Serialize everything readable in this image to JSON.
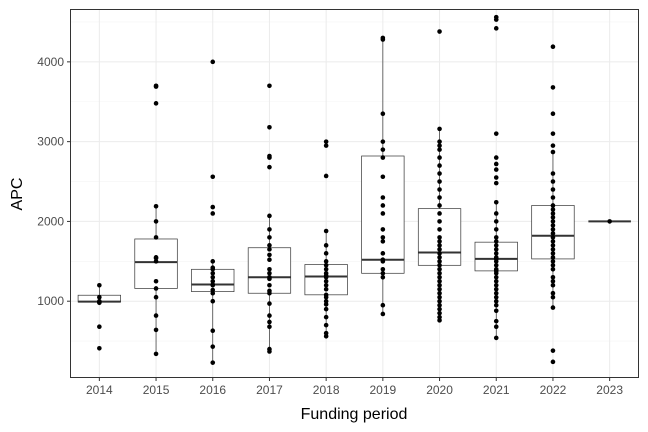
{
  "chart_data": {
    "type": "box",
    "xlabel": "Funding period",
    "ylabel": "APC",
    "ylim": [
      50,
      4650
    ],
    "yticks": [
      1000,
      2000,
      3000,
      4000
    ],
    "grid": true,
    "categories": [
      "2014",
      "2015",
      "2016",
      "2017",
      "2018",
      "2019",
      "2020",
      "2021",
      "2022",
      "2023"
    ],
    "boxes": [
      {
        "category": "2014",
        "lower": 980,
        "q1": 990,
        "median": 995,
        "q3": 1075,
        "upper": 1200
      },
      {
        "category": "2015",
        "lower": 340,
        "q1": 1160,
        "median": 1490,
        "q3": 1780,
        "upper": 2190
      },
      {
        "category": "2016",
        "lower": 230,
        "q1": 1120,
        "median": 1210,
        "q3": 1400,
        "upper": 1500
      },
      {
        "category": "2017",
        "lower": 370,
        "q1": 1100,
        "median": 1300,
        "q3": 1670,
        "upper": 2070
      },
      {
        "category": "2018",
        "lower": 560,
        "q1": 1080,
        "median": 1310,
        "q3": 1460,
        "upper": 1880
      },
      {
        "category": "2019",
        "lower": 840,
        "q1": 1350,
        "median": 1520,
        "q3": 2820,
        "upper": 4300
      },
      {
        "category": "2020",
        "lower": 760,
        "q1": 1450,
        "median": 1610,
        "q3": 2160,
        "upper": 3160
      },
      {
        "category": "2021",
        "lower": 540,
        "q1": 1380,
        "median": 1530,
        "q3": 1740,
        "upper": 2240
      },
      {
        "category": "2022",
        "lower": 920,
        "q1": 1530,
        "median": 1820,
        "q3": 2200,
        "upper": 2870
      },
      {
        "category": "2023",
        "lower": 2000,
        "q1": 2000,
        "median": 2000,
        "q3": 2000,
        "upper": 2000
      }
    ],
    "points": [
      {
        "category": "2014",
        "values": [
          410,
          680,
          980,
          990,
          1000,
          1050,
          1200
        ]
      },
      {
        "category": "2015",
        "values": [
          340,
          640,
          820,
          1050,
          1160,
          1250,
          1500,
          1540,
          1550,
          1800,
          2000,
          2190,
          3480,
          3690,
          3700
        ]
      },
      {
        "category": "2016",
        "values": [
          230,
          430,
          630,
          1000,
          1100,
          1140,
          1200,
          1210,
          1250,
          1300,
          1350,
          1400,
          1420,
          1500,
          2100,
          2180,
          2560,
          4000
        ]
      },
      {
        "category": "2017",
        "values": [
          370,
          400,
          680,
          740,
          820,
          970,
          1100,
          1130,
          1200,
          1280,
          1300,
          1350,
          1400,
          1520,
          1580,
          1650,
          1700,
          1800,
          1900,
          2070,
          2680,
          2800,
          2820,
          3180,
          3700
        ]
      },
      {
        "category": "2018",
        "values": [
          560,
          600,
          700,
          800,
          900,
          960,
          1000,
          1050,
          1080,
          1150,
          1200,
          1250,
          1300,
          1320,
          1350,
          1400,
          1450,
          1500,
          1600,
          1700,
          1880,
          2570,
          2950,
          3000
        ]
      },
      {
        "category": "2019",
        "values": [
          840,
          950,
          1300,
          1350,
          1400,
          1500,
          1520,
          1600,
          1750,
          1800,
          1900,
          2100,
          2200,
          2300,
          2560,
          2800,
          2900,
          3000,
          3350,
          4280,
          4300
        ]
      },
      {
        "category": "2020",
        "values": [
          760,
          800,
          850,
          900,
          950,
          1000,
          1050,
          1100,
          1150,
          1200,
          1250,
          1300,
          1350,
          1400,
          1450,
          1500,
          1550,
          1600,
          1650,
          1700,
          1750,
          1800,
          1900,
          2000,
          2100,
          2200,
          2300,
          2400,
          2500,
          2600,
          2700,
          2800,
          2900,
          2950,
          3000,
          3160,
          4380
        ]
      },
      {
        "category": "2021",
        "values": [
          540,
          680,
          750,
          880,
          950,
          1000,
          1050,
          1100,
          1150,
          1200,
          1250,
          1300,
          1350,
          1380,
          1400,
          1450,
          1500,
          1530,
          1550,
          1600,
          1650,
          1700,
          1750,
          1800,
          1900,
          2000,
          2100,
          2240,
          2480,
          2550,
          2650,
          2720,
          2800,
          3100,
          4420,
          4530,
          4560
        ]
      },
      {
        "category": "2022",
        "values": [
          240,
          380,
          920,
          1050,
          1100,
          1200,
          1250,
          1300,
          1400,
          1450,
          1500,
          1550,
          1600,
          1650,
          1700,
          1750,
          1800,
          1850,
          1900,
          1950,
          2000,
          2050,
          2100,
          2150,
          2200,
          2300,
          2400,
          2500,
          2600,
          2870,
          2950,
          3100,
          3350,
          3680,
          4190
        ]
      },
      {
        "category": "2023",
        "values": [
          2000
        ]
      }
    ]
  }
}
